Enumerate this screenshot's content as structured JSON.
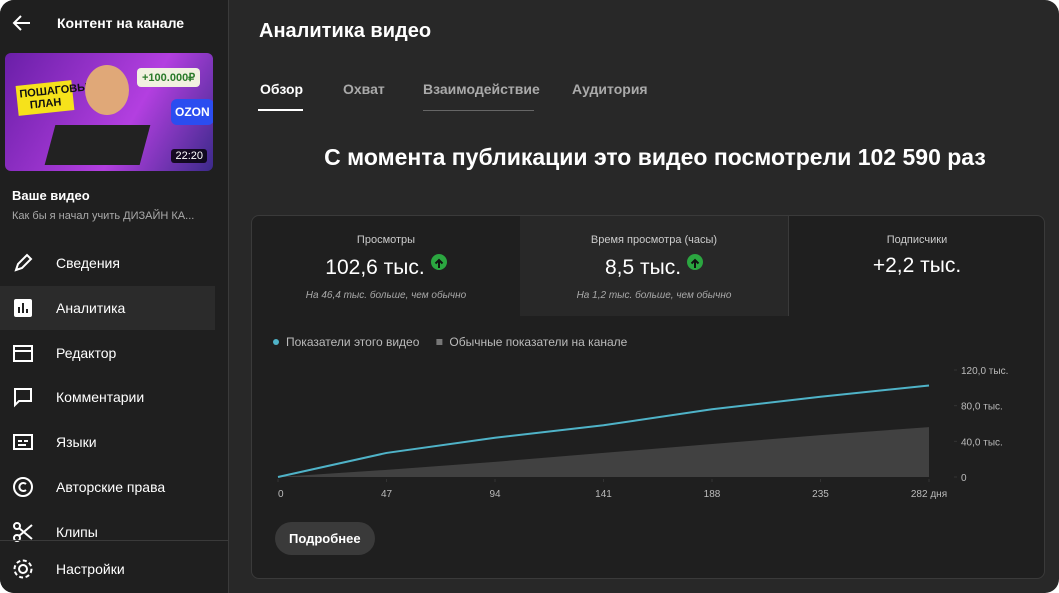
{
  "sidebar": {
    "header": "Контент на канале",
    "thumbnail": {
      "badge": "ПОШАГОВЫЙ ПЛАН",
      "money": "+100.000₽",
      "brand": "OZON",
      "duration": "22:20"
    },
    "video_label": "Ваше видео",
    "video_title": "Как бы я начал учить ДИЗАЙН КА...",
    "nav": [
      "Сведения",
      "Аналитика",
      "Редактор",
      "Комментарии",
      "Языки",
      "Авторские права",
      "Клипы"
    ],
    "settings": "Настройки"
  },
  "main": {
    "title": "Аналитика видео",
    "tabs": [
      "Обзор",
      "Охват",
      "Взаимодействие",
      "Аудитория"
    ],
    "headline": "С момента публикации это видео посмотрели 102 590 раз",
    "metrics": [
      {
        "label": "Просмотры",
        "value": "102,6 тыс.",
        "note": "На 46,4 тыс. больше, чем обычно"
      },
      {
        "label": "Время просмотра (часы)",
        "value": "8,5 тыс.",
        "note": "На 1,2 тыс. больше, чем обычно"
      },
      {
        "label": "Подписчики",
        "value": "+2,2 тыс."
      }
    ],
    "chart": {
      "type": "line",
      "x": [
        0,
        47,
        94,
        141,
        188,
        235,
        282
      ],
      "series": [
        {
          "name": "Показатели этого видео",
          "color": "#4fb3c8",
          "values": [
            0,
            27000,
            44000,
            58000,
            76000,
            90000,
            102600
          ]
        },
        {
          "name": "Обычные показатели на канале",
          "color": "#4a4a4a",
          "values": [
            0,
            8000,
            17000,
            27000,
            37000,
            47000,
            56000
          ]
        }
      ],
      "xlim": [
        0,
        282
      ],
      "ylim": [
        0,
        120000
      ],
      "xticks": [
        0,
        47,
        94,
        141,
        188,
        235,
        {
          "value": 282,
          "label": "282 дня"
        }
      ],
      "yticks": [
        0,
        {
          "value": 40000,
          "label": "40,0 тыс."
        },
        {
          "value": 80000,
          "label": "80,0 тыс."
        },
        {
          "value": 120000,
          "label": "120,0 тыс."
        }
      ]
    },
    "button": "Подробнее"
  }
}
